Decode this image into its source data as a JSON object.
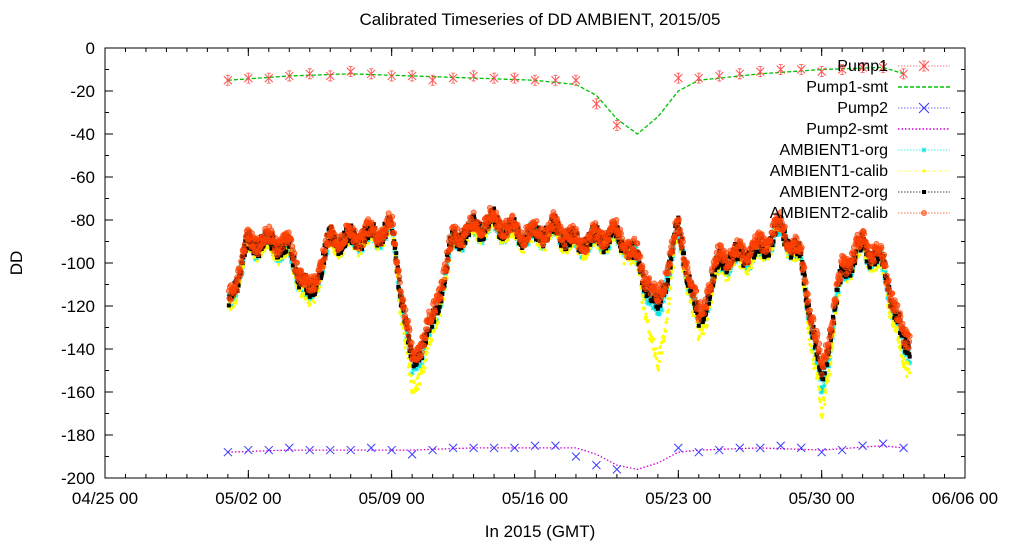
{
  "chart_data": {
    "type": "scatter",
    "title": "Calibrated Timeseries of DD AMBIENT, 2015/05",
    "xlabel": "In 2015 (GMT)",
    "ylabel": "DD",
    "xlim": [
      "2015-04-25",
      "2015-06-06"
    ],
    "ylim": [
      -200,
      0
    ],
    "xticks": [
      "04/25 00",
      "05/02 00",
      "05/09 00",
      "05/16 00",
      "05/23 00",
      "05/30 00",
      "06/06 00"
    ],
    "yticks": [
      0,
      -20,
      -40,
      -60,
      -80,
      -100,
      -120,
      -140,
      -160,
      -180,
      -200
    ],
    "grid": false,
    "legend_position": "top-right",
    "series": [
      {
        "name": "Pump1",
        "style": "points",
        "marker": "x-with-errorbars",
        "color": "#ff4d4d",
        "x": [
          "2015-05-01",
          "2015-05-02",
          "2015-05-03",
          "2015-05-04",
          "2015-05-05",
          "2015-05-06",
          "2015-05-07",
          "2015-05-08",
          "2015-05-09",
          "2015-05-10",
          "2015-05-11",
          "2015-05-12",
          "2015-05-13",
          "2015-05-14",
          "2015-05-15",
          "2015-05-16",
          "2015-05-17",
          "2015-05-18",
          "2015-05-19",
          "2015-05-20",
          "2015-05-23",
          "2015-05-24",
          "2015-05-25",
          "2015-05-26",
          "2015-05-27",
          "2015-05-28",
          "2015-05-29",
          "2015-05-30",
          "2015-05-31",
          "2015-06-01",
          "2015-06-02",
          "2015-06-03"
        ],
        "y": [
          -15,
          -14,
          -14,
          -13,
          -12,
          -13,
          -11,
          -12,
          -13,
          -13,
          -15,
          -14,
          -13,
          -14,
          -14,
          -15,
          -15,
          -15,
          -26,
          -36,
          -14,
          -14,
          -13,
          -12,
          -11,
          -10,
          -10,
          -11,
          -10,
          -9,
          -9,
          -12
        ]
      },
      {
        "name": "Pump1-smt",
        "style": "dashed-line",
        "color": "#00c000",
        "x": [
          "2015-05-01",
          "2015-05-04",
          "2015-05-07",
          "2015-05-10",
          "2015-05-13",
          "2015-05-16",
          "2015-05-18",
          "2015-05-19",
          "2015-05-20",
          "2015-05-21",
          "2015-05-22",
          "2015-05-23",
          "2015-05-24",
          "2015-05-27",
          "2015-05-30",
          "2015-06-02",
          "2015-06-03"
        ],
        "y": [
          -15,
          -13,
          -12,
          -13,
          -14,
          -15,
          -17,
          -22,
          -33,
          -40,
          -32,
          -20,
          -15,
          -12,
          -10,
          -9,
          -12
        ]
      },
      {
        "name": "Pump2",
        "style": "points",
        "marker": "x",
        "color": "#3b3bff",
        "x": [
          "2015-05-01",
          "2015-05-02",
          "2015-05-03",
          "2015-05-04",
          "2015-05-05",
          "2015-05-06",
          "2015-05-07",
          "2015-05-08",
          "2015-05-09",
          "2015-05-10",
          "2015-05-11",
          "2015-05-12",
          "2015-05-13",
          "2015-05-14",
          "2015-05-15",
          "2015-05-16",
          "2015-05-17",
          "2015-05-18",
          "2015-05-19",
          "2015-05-20",
          "2015-05-23",
          "2015-05-24",
          "2015-05-25",
          "2015-05-26",
          "2015-05-27",
          "2015-05-28",
          "2015-05-29",
          "2015-05-30",
          "2015-05-31",
          "2015-06-01",
          "2015-06-02",
          "2015-06-03"
        ],
        "y": [
          -188,
          -187,
          -187,
          -186,
          -187,
          -187,
          -187,
          -186,
          -187,
          -189,
          -187,
          -186,
          -186,
          -186,
          -186,
          -185,
          -185,
          -190,
          -194,
          -196,
          -186,
          -188,
          -187,
          -186,
          -186,
          -185,
          -186,
          -188,
          -187,
          -185,
          -184,
          -186
        ]
      },
      {
        "name": "Pump2-smt",
        "style": "dotted-line",
        "color": "#d000d0",
        "x": [
          "2015-05-01",
          "2015-05-04",
          "2015-05-07",
          "2015-05-10",
          "2015-05-13",
          "2015-05-16",
          "2015-05-18",
          "2015-05-19",
          "2015-05-20",
          "2015-05-21",
          "2015-05-22",
          "2015-05-23",
          "2015-05-24",
          "2015-05-27",
          "2015-05-30",
          "2015-06-02",
          "2015-06-03"
        ],
        "y": [
          -188,
          -187,
          -187,
          -187,
          -186,
          -186,
          -186,
          -189,
          -194,
          -196,
          -193,
          -188,
          -187,
          -186,
          -187,
          -185,
          -186
        ]
      },
      {
        "name": "AMBIENT1-org",
        "style": "dense-points",
        "marker": "asterisk",
        "color": "#00e5e5",
        "x": [
          "2015-05-01",
          "2015-05-02",
          "2015-05-03",
          "2015-05-04",
          "2015-05-05",
          "2015-05-06",
          "2015-05-07",
          "2015-05-08",
          "2015-05-09",
          "2015-05-10",
          "2015-05-11",
          "2015-05-12",
          "2015-05-13",
          "2015-05-14",
          "2015-05-15",
          "2015-05-16",
          "2015-05-17",
          "2015-05-18",
          "2015-05-19",
          "2015-05-20",
          "2015-05-21",
          "2015-05-22",
          "2015-05-23",
          "2015-05-24",
          "2015-05-25",
          "2015-05-26",
          "2015-05-27",
          "2015-05-28",
          "2015-05-29",
          "2015-05-30",
          "2015-05-31",
          "2015-06-01",
          "2015-06-02",
          "2015-06-03"
        ],
        "y": [
          -122,
          -92,
          -91,
          -95,
          -118,
          -90,
          -90,
          -88,
          -85,
          -150,
          -130,
          -90,
          -85,
          -82,
          -87,
          -88,
          -85,
          -92,
          -90,
          -88,
          -100,
          -125,
          -85,
          -130,
          -100,
          -98,
          -95,
          -85,
          -100,
          -160,
          -105,
          -93,
          -102,
          -140
        ]
      },
      {
        "name": "AMBIENT1-calib",
        "style": "dense-points",
        "marker": "dot",
        "color": "#ffff00",
        "x": [
          "2015-05-01",
          "2015-05-02",
          "2015-05-03",
          "2015-05-04",
          "2015-05-05",
          "2015-05-06",
          "2015-05-07",
          "2015-05-08",
          "2015-05-09",
          "2015-05-10",
          "2015-05-11",
          "2015-05-12",
          "2015-05-13",
          "2015-05-14",
          "2015-05-15",
          "2015-05-16",
          "2015-05-17",
          "2015-05-18",
          "2015-05-19",
          "2015-05-20",
          "2015-05-21",
          "2015-05-22",
          "2015-05-23",
          "2015-05-24",
          "2015-05-25",
          "2015-05-26",
          "2015-05-27",
          "2015-05-28",
          "2015-05-29",
          "2015-05-30",
          "2015-05-31",
          "2015-06-01",
          "2015-06-02",
          "2015-06-03"
        ],
        "y": [
          -124,
          -93,
          -92,
          -96,
          -120,
          -91,
          -91,
          -89,
          -86,
          -162,
          -134,
          -91,
          -86,
          -83,
          -88,
          -89,
          -86,
          -93,
          -91,
          -89,
          -102,
          -150,
          -86,
          -136,
          -102,
          -100,
          -96,
          -86,
          -101,
          -172,
          -106,
          -94,
          -104,
          -148
        ]
      },
      {
        "name": "AMBIENT2-org",
        "style": "dense-points",
        "marker": "square",
        "color": "#000000",
        "x": [
          "2015-05-01",
          "2015-05-02",
          "2015-05-03",
          "2015-05-04",
          "2015-05-05",
          "2015-05-06",
          "2015-05-07",
          "2015-05-08",
          "2015-05-09",
          "2015-05-10",
          "2015-05-11",
          "2015-05-12",
          "2015-05-13",
          "2015-05-14",
          "2015-05-15",
          "2015-05-16",
          "2015-05-17",
          "2015-05-18",
          "2015-05-19",
          "2015-05-20",
          "2015-05-21",
          "2015-05-22",
          "2015-05-23",
          "2015-05-24",
          "2015-05-25",
          "2015-05-26",
          "2015-05-27",
          "2015-05-28",
          "2015-05-29",
          "2015-05-30",
          "2015-05-31",
          "2015-06-01",
          "2015-06-02",
          "2015-06-03"
        ],
        "y": [
          -120,
          -91,
          -90,
          -94,
          -116,
          -89,
          -89,
          -87,
          -84,
          -148,
          -128,
          -89,
          -84,
          -81,
          -86,
          -87,
          -84,
          -91,
          -89,
          -87,
          -99,
          -122,
          -84,
          -128,
          -99,
          -97,
          -94,
          -84,
          -99,
          -155,
          -104,
          -92,
          -101,
          -138
        ]
      },
      {
        "name": "AMBIENT2-calib",
        "style": "dense-points",
        "marker": "circle",
        "color": "#ff4000",
        "x": [
          "2015-05-01",
          "2015-05-02",
          "2015-05-03",
          "2015-05-04",
          "2015-05-05",
          "2015-05-06",
          "2015-05-07",
          "2015-05-08",
          "2015-05-09",
          "2015-05-10",
          "2015-05-11",
          "2015-05-12",
          "2015-05-13",
          "2015-05-14",
          "2015-05-15",
          "2015-05-16",
          "2015-05-17",
          "2015-05-18",
          "2015-05-19",
          "2015-05-20",
          "2015-05-21",
          "2015-05-22",
          "2015-05-23",
          "2015-05-24",
          "2015-05-25",
          "2015-05-26",
          "2015-05-27",
          "2015-05-28",
          "2015-05-29",
          "2015-05-30",
          "2015-05-31",
          "2015-06-01",
          "2015-06-02",
          "2015-06-03"
        ],
        "y": [
          -118,
          -90,
          -89,
          -92,
          -114,
          -88,
          -88,
          -86,
          -83,
          -145,
          -125,
          -88,
          -83,
          -80,
          -85,
          -86,
          -83,
          -90,
          -88,
          -86,
          -97,
          -118,
          -83,
          -125,
          -97,
          -95,
          -92,
          -82,
          -97,
          -150,
          -102,
          -90,
          -99,
          -135
        ]
      }
    ]
  }
}
